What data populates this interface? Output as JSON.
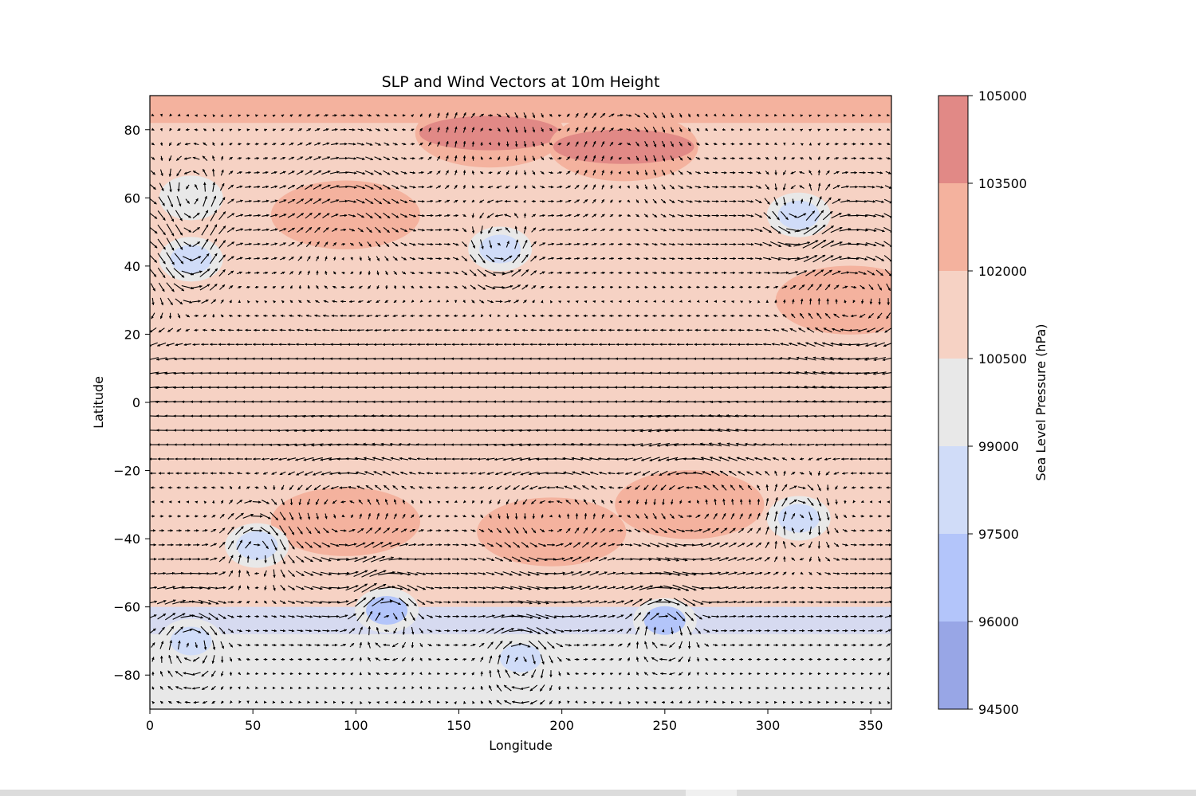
{
  "chart_data": {
    "type": "contour",
    "title": "SLP and Wind Vectors at 10m Height",
    "xlabel": "Longitude",
    "ylabel": "Latitude",
    "xlim": [
      0,
      360
    ],
    "ylim": [
      -90,
      90
    ],
    "x_ticks": [
      0,
      50,
      100,
      150,
      200,
      250,
      300,
      350
    ],
    "y_ticks": [
      -80,
      -60,
      -40,
      -20,
      0,
      20,
      40,
      60,
      80
    ],
    "colorbar": {
      "label": "Sea Level Pressure (hPa)",
      "levels": [
        94500,
        96000,
        97500,
        99000,
        100500,
        102000,
        103500,
        105000
      ],
      "colors": [
        "#98a6e6",
        "#b3c5fa",
        "#d0dcf8",
        "#e8e8e8",
        "#f6d2c4",
        "#f4b29e",
        "#e18986"
      ]
    },
    "highs": [
      {
        "lon": 165,
        "lat": 79,
        "level": 6
      },
      {
        "lon": 230,
        "lat": 75,
        "level": 6
      },
      {
        "lon": 95,
        "lat": 55,
        "level": 5
      },
      {
        "lon": 340,
        "lat": 30,
        "level": 5
      },
      {
        "lon": 95,
        "lat": -35,
        "level": 5
      },
      {
        "lon": 195,
        "lat": -38,
        "level": 5
      },
      {
        "lon": 262,
        "lat": -30,
        "level": 5
      }
    ],
    "lows": [
      {
        "lon": 115,
        "lat": -61,
        "level": 1
      },
      {
        "lon": 250,
        "lat": -64,
        "level": 1
      },
      {
        "lon": 180,
        "lat": -75,
        "level": 2
      },
      {
        "lon": 20,
        "lat": -70,
        "level": 2
      },
      {
        "lon": 315,
        "lat": 55,
        "level": 2
      },
      {
        "lon": 170,
        "lat": 45,
        "level": 2
      },
      {
        "lon": 20,
        "lat": 42,
        "level": 2
      },
      {
        "lon": 315,
        "lat": -34,
        "level": 2
      },
      {
        "lon": 52,
        "lat": -42,
        "level": 2
      },
      {
        "lon": 20,
        "lat": 60,
        "level": 3
      }
    ]
  }
}
